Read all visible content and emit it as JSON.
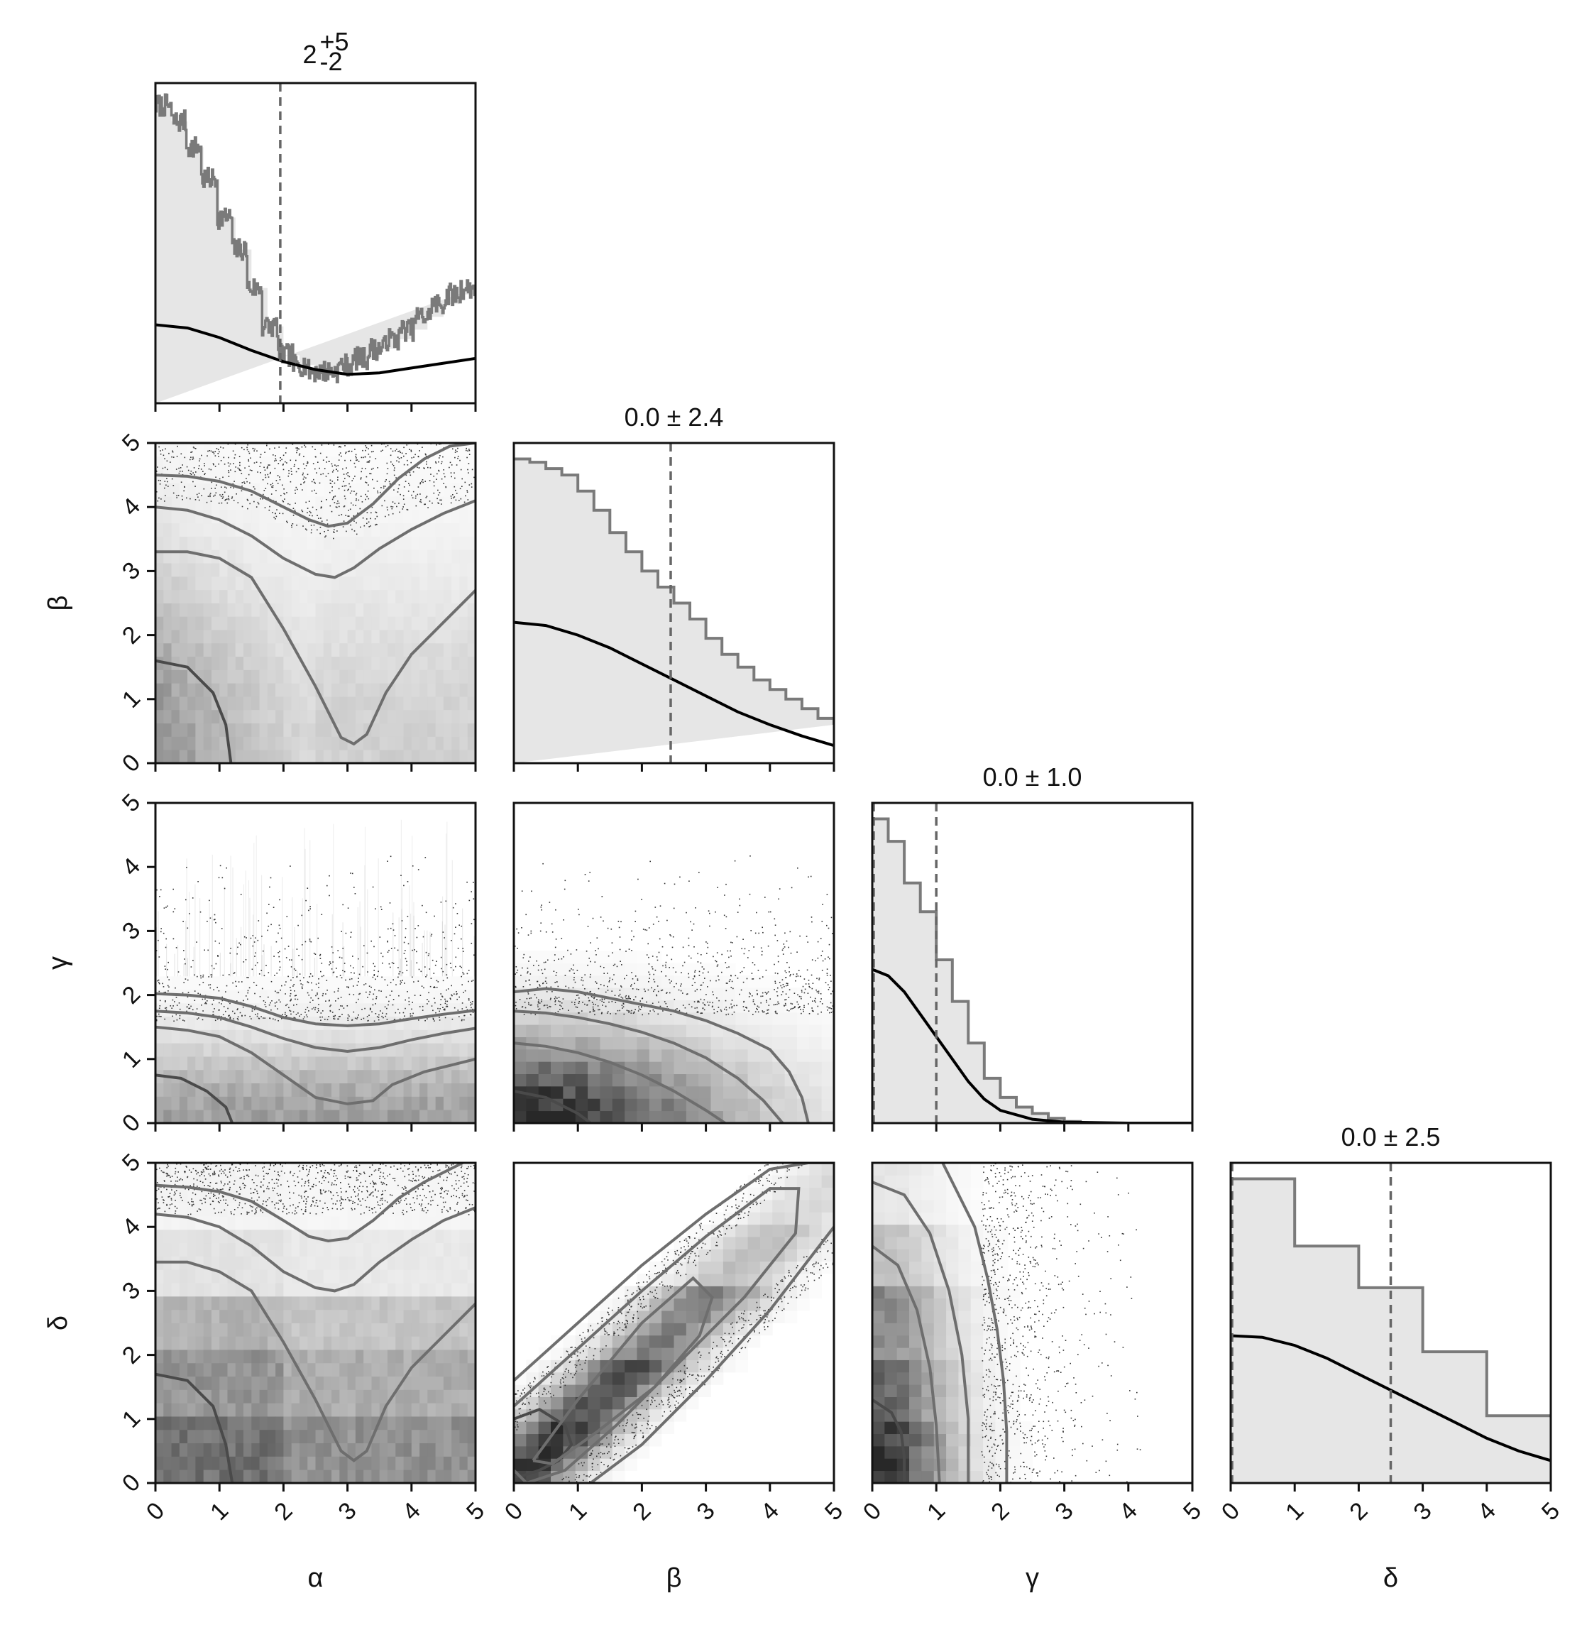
{
  "chart_data": {
    "type": "corner",
    "parameters": [
      "α",
      "β",
      "γ",
      "δ"
    ],
    "axis_range": [
      0,
      5
    ],
    "ticks": [
      0,
      1,
      2,
      3,
      4,
      5
    ],
    "tick_labels": [
      "0",
      "1",
      "2",
      "3",
      "4",
      "5"
    ],
    "colors": {
      "background": "#ffffff",
      "frame": "#111111",
      "hist_fill": "#e6e6e6",
      "hist_step": "#7a7a7a",
      "prior_curve": "#000000",
      "median_line": "#666666",
      "contour": "#6e6e6e",
      "points": "#333333"
    },
    "marginals": [
      {
        "param": "α",
        "title_base": "2",
        "title_sup": "+5",
        "title_sub": "-2",
        "median": 1.95,
        "step_x": [
          0,
          0.25,
          0.5,
          0.75,
          1.0,
          1.25,
          1.5,
          1.75,
          2.0,
          2.25,
          2.5,
          2.75,
          3.0,
          3.25,
          3.5,
          3.75,
          4.0,
          4.25,
          4.5,
          4.75,
          5.0
        ],
        "step_y": [
          0.93,
          0.88,
          0.8,
          0.7,
          0.58,
          0.48,
          0.36,
          0.24,
          0.15,
          0.12,
          0.1,
          0.1,
          0.12,
          0.14,
          0.17,
          0.2,
          0.23,
          0.27,
          0.31,
          0.34,
          0.36
        ],
        "prior_x": [
          0,
          0.5,
          1.0,
          1.5,
          2.0,
          2.5,
          3.0,
          3.5,
          4.0,
          4.5,
          5.0
        ],
        "prior_y": [
          0.245,
          0.235,
          0.205,
          0.165,
          0.13,
          0.105,
          0.09,
          0.095,
          0.11,
          0.125,
          0.14
        ]
      },
      {
        "param": "β",
        "title": "0.0 ± 2.4",
        "median": 2.45,
        "step_x": [
          0,
          0.25,
          0.5,
          0.75,
          1.0,
          1.25,
          1.5,
          1.75,
          2.0,
          2.25,
          2.5,
          2.75,
          3.0,
          3.25,
          3.5,
          3.75,
          4.0,
          4.25,
          4.5,
          4.75,
          5.0
        ],
        "step_y": [
          0.95,
          0.94,
          0.92,
          0.9,
          0.85,
          0.79,
          0.72,
          0.66,
          0.6,
          0.55,
          0.5,
          0.45,
          0.39,
          0.34,
          0.3,
          0.26,
          0.23,
          0.2,
          0.17,
          0.14,
          0.12
        ],
        "prior_x": [
          0,
          0.5,
          1.0,
          1.5,
          2.0,
          2.5,
          3.0,
          3.5,
          4.0,
          4.5,
          5.0
        ],
        "prior_y": [
          0.44,
          0.43,
          0.4,
          0.36,
          0.31,
          0.26,
          0.21,
          0.16,
          0.12,
          0.085,
          0.055
        ]
      },
      {
        "param": "γ",
        "title": "0.0 ± 1.0",
        "median": 1.0,
        "step_x": [
          0,
          0.25,
          0.5,
          0.75,
          1.0,
          1.25,
          1.5,
          1.75,
          2.0,
          2.25,
          2.5,
          2.75,
          3.0,
          3.25
        ],
        "step_y": [
          0.95,
          0.88,
          0.75,
          0.66,
          0.51,
          0.38,
          0.25,
          0.14,
          0.08,
          0.05,
          0.03,
          0.015,
          0.005,
          0.0
        ],
        "prior_x": [
          0,
          0.25,
          0.5,
          0.75,
          1.0,
          1.25,
          1.5,
          1.75,
          2.0,
          2.5,
          3.0,
          4.0,
          5.0
        ],
        "prior_y": [
          0.48,
          0.46,
          0.41,
          0.34,
          0.27,
          0.2,
          0.13,
          0.075,
          0.04,
          0.012,
          0.003,
          0.0,
          0.0
        ],
        "dashed_zero": true
      },
      {
        "param": "δ",
        "title": "0.0 ± 2.5",
        "median": 2.5,
        "step_x": [
          0,
          1,
          2,
          3,
          4,
          5
        ],
        "step_y": [
          0.95,
          0.74,
          0.61,
          0.41,
          0.21
        ],
        "prior_x": [
          0,
          0.5,
          1.0,
          1.5,
          2.0,
          2.5,
          3.0,
          3.5,
          4.0,
          4.5,
          5.0
        ],
        "prior_y": [
          0.46,
          0.455,
          0.43,
          0.39,
          0.34,
          0.29,
          0.24,
          0.19,
          0.14,
          0.1,
          0.07
        ],
        "dashed_zero": true
      }
    ],
    "pairs": [
      {
        "x": "α",
        "y": "β",
        "contours": [
          {
            "x": [
              0,
              0.5,
              0.9,
              1.1,
              1.18
            ],
            "y": [
              1.6,
              1.5,
              1.1,
              0.6,
              0.0
            ]
          },
          {
            "x": [
              0,
              0.5,
              1.0,
              1.5,
              2.0,
              2.5,
              2.9,
              3.1,
              3.3,
              3.6,
              4.0,
              4.5,
              5.0
            ],
            "y": [
              3.3,
              3.3,
              3.2,
              2.9,
              2.1,
              1.2,
              0.4,
              0.3,
              0.45,
              1.1,
              1.7,
              2.2,
              2.7
            ]
          },
          {
            "x": [
              0,
              0.5,
              1.0,
              1.5,
              2.0,
              2.5,
              2.8,
              3.1,
              3.5,
              4.0,
              4.5,
              5.0
            ],
            "y": [
              4.0,
              3.95,
              3.8,
              3.55,
              3.2,
              2.95,
              2.9,
              3.05,
              3.35,
              3.65,
              3.9,
              4.1
            ]
          },
          {
            "x": [
              0,
              0.5,
              1.0,
              1.5,
              2.0,
              2.4,
              2.7,
              3.0,
              3.4,
              3.8,
              4.2,
              4.6,
              5.0
            ],
            "y": [
              4.5,
              4.48,
              4.4,
              4.25,
              4.0,
              3.8,
              3.7,
              3.75,
              4.05,
              4.45,
              4.75,
              4.95,
              5.0
            ]
          }
        ]
      },
      {
        "x": "α",
        "y": "γ",
        "contours": [
          {
            "x": [
              0,
              0.4,
              0.8,
              1.1,
              1.2
            ],
            "y": [
              0.75,
              0.7,
              0.5,
              0.25,
              0.0
            ]
          },
          {
            "x": [
              0,
              0.5,
              1.0,
              1.5,
              2.0,
              2.5,
              3.0,
              3.4,
              3.7,
              4.2,
              4.6,
              5.0
            ],
            "y": [
              1.5,
              1.45,
              1.35,
              1.1,
              0.75,
              0.4,
              0.3,
              0.35,
              0.6,
              0.8,
              0.9,
              1.0
            ]
          },
          {
            "x": [
              0,
              0.5,
              1.0,
              1.5,
              2.0,
              2.5,
              3.0,
              3.5,
              4.0,
              4.5,
              5.0
            ],
            "y": [
              1.75,
              1.72,
              1.65,
              1.5,
              1.32,
              1.18,
              1.12,
              1.18,
              1.3,
              1.4,
              1.48
            ]
          },
          {
            "x": [
              0,
              0.5,
              1.0,
              1.5,
              2.0,
              2.5,
              3.0,
              3.5,
              4.0,
              4.5,
              5.0
            ],
            "y": [
              2.02,
              2.0,
              1.95,
              1.82,
              1.65,
              1.55,
              1.52,
              1.55,
              1.63,
              1.7,
              1.76
            ]
          }
        ]
      },
      {
        "x": "β",
        "y": "γ",
        "contours": [
          {
            "x": [
              0,
              0.5,
              1.0,
              1.2
            ],
            "y": [
              0.5,
              0.4,
              0.15,
              0.0
            ]
          },
          {
            "x": [
              0,
              0.5,
              1.0,
              1.5,
              2.0,
              2.5,
              3.0,
              3.3
            ],
            "y": [
              1.25,
              1.2,
              1.1,
              0.95,
              0.75,
              0.5,
              0.2,
              0.0
            ]
          },
          {
            "x": [
              0,
              0.5,
              1.0,
              1.5,
              2.0,
              2.5,
              3.0,
              3.5,
              3.9,
              4.2
            ],
            "y": [
              1.75,
              1.72,
              1.65,
              1.55,
              1.42,
              1.25,
              1.02,
              0.7,
              0.35,
              0.0
            ]
          },
          {
            "x": [
              0,
              0.5,
              1.0,
              1.5,
              2.0,
              2.5,
              3.0,
              3.5,
              4.0,
              4.3,
              4.5,
              4.6
            ],
            "y": [
              2.05,
              2.1,
              2.05,
              1.95,
              1.85,
              1.75,
              1.6,
              1.4,
              1.15,
              0.8,
              0.4,
              0.0
            ]
          }
        ]
      },
      {
        "x": "α",
        "y": "δ",
        "contours": [
          {
            "x": [
              0,
              0.5,
              0.9,
              1.1,
              1.2
            ],
            "y": [
              1.7,
              1.6,
              1.2,
              0.6,
              0.0
            ]
          },
          {
            "x": [
              0,
              0.5,
              1.0,
              1.5,
              2.0,
              2.5,
              2.9,
              3.1,
              3.3,
              3.6,
              4.0,
              4.5,
              5.0
            ],
            "y": [
              3.45,
              3.45,
              3.3,
              3.0,
              2.2,
              1.3,
              0.5,
              0.35,
              0.5,
              1.2,
              1.8,
              2.3,
              2.8
            ]
          },
          {
            "x": [
              0,
              0.5,
              1.0,
              1.5,
              2.0,
              2.5,
              2.8,
              3.1,
              3.5,
              4.0,
              4.5,
              5.0
            ],
            "y": [
              4.2,
              4.15,
              4.0,
              3.7,
              3.3,
              3.05,
              3.0,
              3.1,
              3.45,
              3.8,
              4.1,
              4.3
            ]
          },
          {
            "x": [
              0,
              0.5,
              1.0,
              1.5,
              2.0,
              2.4,
              2.7,
              3.0,
              3.4,
              3.8,
              4.2,
              4.6,
              4.8
            ],
            "y": [
              4.65,
              4.62,
              4.55,
              4.4,
              4.1,
              3.85,
              3.78,
              3.82,
              4.1,
              4.45,
              4.7,
              4.9,
              5.0
            ]
          }
        ]
      },
      {
        "x": "β",
        "y": "δ",
        "contours": [
          {
            "x": [
              0,
              0.4,
              0.8,
              0.9,
              0.7,
              0.4,
              0.1,
              0
            ],
            "y": [
              1.0,
              1.15,
              0.9,
              0.6,
              0.35,
              0.2,
              0.1,
              0.1
            ]
          },
          {
            "x": [
              0.3,
              1.0,
              2.0,
              2.8,
              3.1,
              2.9,
              2.2,
              1.3,
              0.6,
              0.3
            ],
            "y": [
              0.35,
              1.3,
              2.5,
              3.2,
              2.9,
              2.3,
              1.5,
              0.8,
              0.3,
              0.35
            ]
          },
          {
            "x": [
              0,
              1.0,
              2.0,
              3.0,
              4.0,
              4.45,
              4.4,
              3.6,
              2.6,
              1.6,
              0.8,
              0.2,
              0
            ],
            "y": [
              1.2,
              2.1,
              3.0,
              3.85,
              4.6,
              4.6,
              3.9,
              2.9,
              1.9,
              0.9,
              0.2,
              0.0,
              0.2
            ]
          },
          {
            "x": [
              0,
              1.0,
              2.0,
              3.0,
              4.0,
              4.6,
              5.0
            ],
            "y": [
              1.6,
              2.5,
              3.4,
              4.2,
              4.9,
              5.0,
              5.0
            ]
          },
          {
            "x": [
              1.2,
              2.0,
              3.0,
              4.0,
              5.0
            ],
            "y": [
              0.0,
              0.6,
              1.6,
              2.7,
              4.0
            ]
          }
        ]
      },
      {
        "x": "γ",
        "y": "δ",
        "contours": [
          {
            "x": [
              0,
              0.3,
              0.45,
              0.5,
              0.5
            ],
            "y": [
              1.3,
              1.1,
              0.8,
              0.4,
              0.0
            ]
          },
          {
            "x": [
              0,
              0.4,
              0.7,
              0.9,
              1.0,
              1.05
            ],
            "y": [
              3.7,
              3.4,
              2.7,
              1.8,
              0.9,
              0.0
            ]
          },
          {
            "x": [
              0,
              0.5,
              0.9,
              1.2,
              1.4,
              1.5,
              1.5
            ],
            "y": [
              4.7,
              4.5,
              3.9,
              3.0,
              2.0,
              1.0,
              0.0
            ]
          },
          {
            "x": [
              1.1,
              1.3,
              1.6,
              1.8,
              1.95,
              2.05,
              2.1,
              2.1
            ],
            "y": [
              5.0,
              4.6,
              4.0,
              3.2,
              2.4,
              1.6,
              0.8,
              0.0
            ]
          }
        ]
      }
    ]
  }
}
